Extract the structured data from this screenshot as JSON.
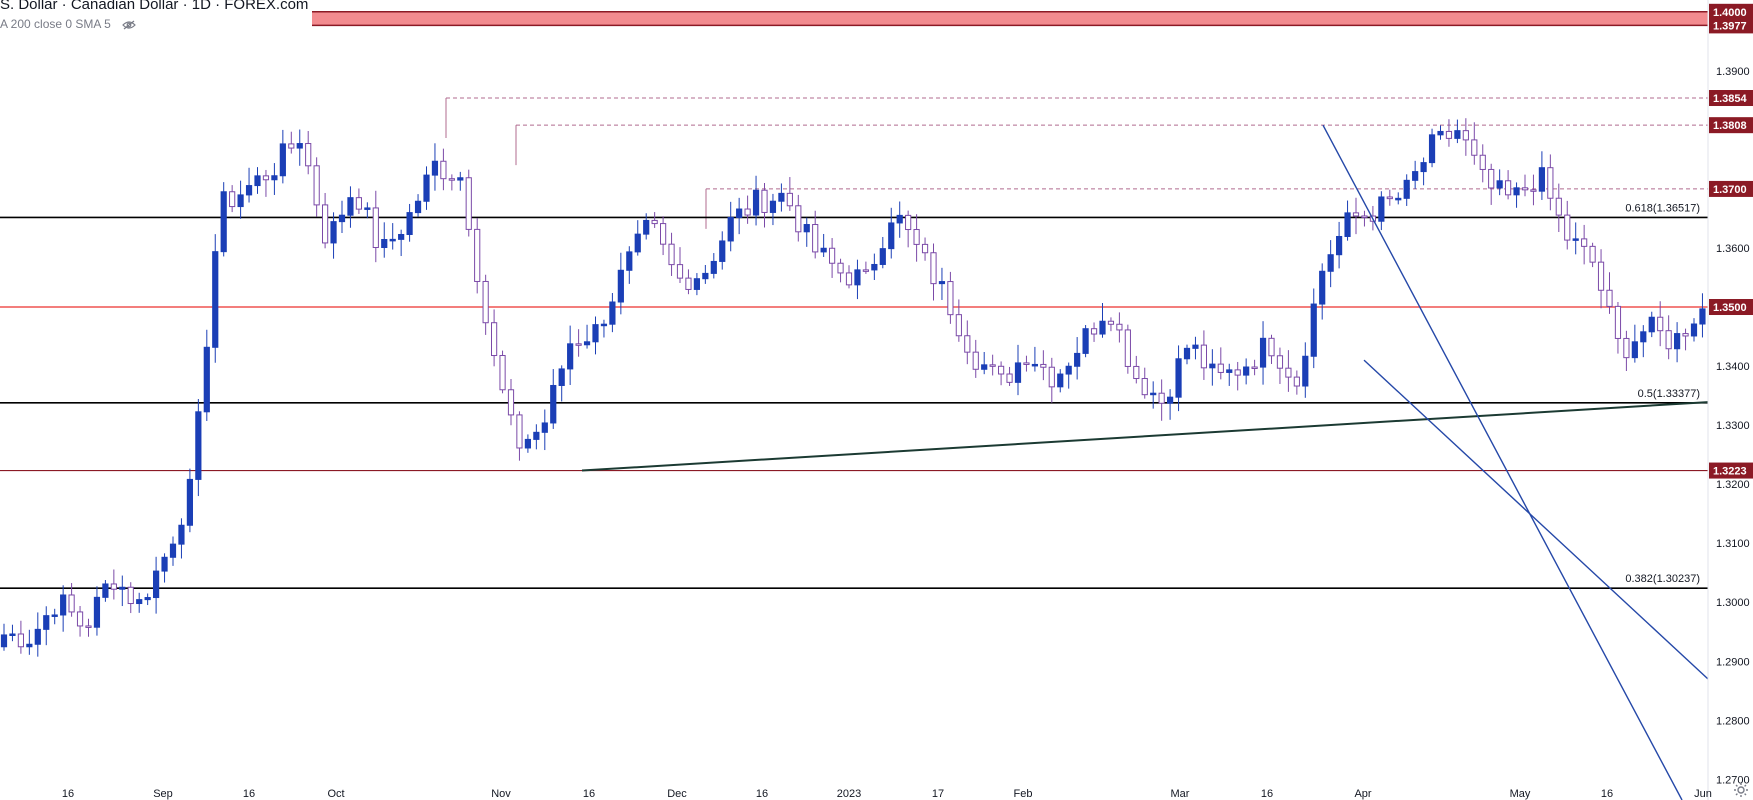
{
  "header": {
    "title": "S. Dollar · Canadian Dollar · 1D · FOREX.com",
    "indicator": "A 200 close 0 SMA 5"
  },
  "colors": {
    "up_candle": "#1b3fb6",
    "down_candle": "#ffffff",
    "candle_border_down": "#7b4aa8",
    "resistance_zone": "#f28b8f",
    "resistance_tag": "#8b1a25",
    "red_line": "#ef5350",
    "dark_red_line": "#8b1a25",
    "fib_line": "#000000",
    "trendline": "#1b3a32",
    "wedge_line": "#2548a8",
    "dashed_line": "#b06b8f"
  },
  "icons": {
    "hide": "eye-off-icon",
    "settings": "gear-icon"
  },
  "chart_data": {
    "type": "candlestick",
    "ylim": [
      1.2665,
      1.402
    ],
    "y_ticks": [
      "1.3900",
      "1.3600",
      "1.3400",
      "1.3300",
      "1.3200",
      "1.3100",
      "1.3000",
      "1.2900",
      "1.2800",
      "1.2700"
    ],
    "x_ticks": [
      "16",
      "Sep",
      "16",
      "Oct",
      "Nov",
      "16",
      "Dec",
      "16",
      "2023",
      "17",
      "Feb",
      "Mar",
      "16",
      "Apr",
      "May",
      "16",
      "Jun"
    ],
    "price_tags": [
      "1.4000",
      "1.3977",
      "1.3854",
      "1.3808",
      "1.3700",
      "1.3500",
      "1.3223"
    ],
    "fib_levels": [
      {
        "label": "0.618(1.36517)",
        "value": 1.36517
      },
      {
        "label": "0.5(1.33377)",
        "value": 1.33377
      },
      {
        "label": "0.382(1.30237)",
        "value": 1.30237
      }
    ],
    "horizontal_levels": [
      {
        "value": 1.35,
        "style": "red"
      },
      {
        "value": 1.3223,
        "style": "dark-red"
      }
    ],
    "resistance_zone": [
      1.3977,
      1.4
    ],
    "dashed_levels": [
      1.3854,
      1.3808,
      1.37
    ],
    "trendline": {
      "from": [
        16,
        1.3223
      ],
      "to": [
        210,
        1.3339
      ]
    },
    "wedge_upper": {
      "from": [
        181,
        1.3808
      ],
      "to": [
        227,
        1.2665
      ]
    },
    "wedge_lower": {
      "from": [
        187,
        1.341
      ],
      "to": [
        210,
        1.287
      ]
    },
    "anchors": [
      0,
      1.2945,
      1.294,
      1.3005,
      1.2955,
      1.3045,
      1.2995,
      1.308,
      1.32,
      1.367,
      1.37,
      1.3735,
      1.379,
      1.361,
      1.3705,
      1.359,
      1.365,
      1.374,
      1.372,
      1.3445,
      1.3265,
      1.3295,
      1.344,
      1.346,
      1.356,
      1.364,
      1.3545,
      1.356,
      1.3645,
      1.368,
      1.369,
      1.36,
      1.356,
      1.3545,
      1.3665,
      1.359,
      1.3515,
      1.342,
      1.337,
      1.3425,
      1.338,
      1.344,
      1.3505,
      1.3385,
      1.334,
      1.344,
      1.3375,
      1.34,
      1.344,
      1.3375,
      1.3575,
      1.365,
      1.3665,
      1.369,
      1.377,
      1.38,
      1.3705,
      1.368,
      1.3725,
      1.362,
      1.3575,
      1.3425,
      1.3465,
      1.344,
      1.35,
      1.3425
    ],
    "note_candles": "OHLC series recreated from the visible candlestick pattern (~205 daily bars)"
  }
}
